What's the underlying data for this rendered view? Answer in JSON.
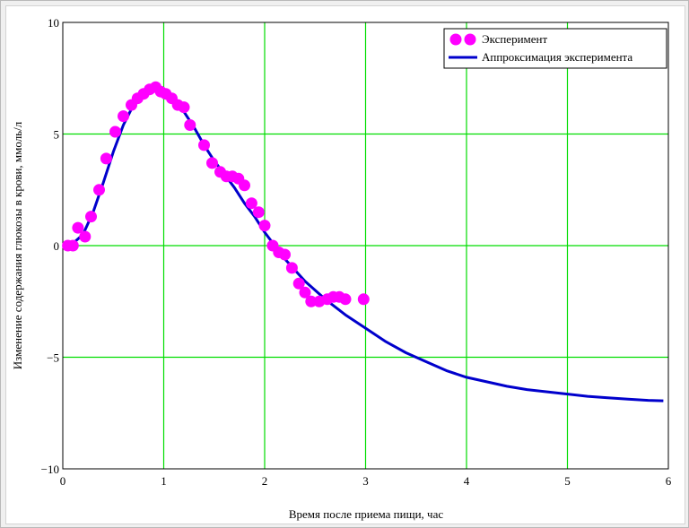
{
  "chart_data": {
    "type": "scatter",
    "xlabel": "Время после приема пищи, час",
    "ylabel": "Изменение содержания глюкозы в крови, ммоль/л",
    "xlim": [
      0,
      6
    ],
    "ylim": [
      -10,
      10
    ],
    "x_ticks": [
      "0",
      "1",
      "2",
      "3",
      "4",
      "5",
      "6"
    ],
    "y_ticks": [
      "10",
      "5",
      "0",
      "−5",
      "−10"
    ],
    "grid": true,
    "legend_position": "top-right",
    "colors": {
      "experiment": "#ff00ff",
      "fit": "#0000cc",
      "grid": "#00dd00"
    },
    "series": [
      {
        "name": "Эксперимент",
        "kind": "markers",
        "x": [
          0.05,
          0.1,
          0.15,
          0.22,
          0.28,
          0.36,
          0.43,
          0.52,
          0.6,
          0.68,
          0.74,
          0.8,
          0.86,
          0.92,
          0.97,
          1.02,
          1.08,
          1.14,
          1.2,
          1.26,
          1.4,
          1.48,
          1.56,
          1.62,
          1.68,
          1.74,
          1.8,
          1.87,
          1.94,
          2.0,
          2.08,
          2.14,
          2.2,
          2.27,
          2.34,
          2.4,
          2.46,
          2.54,
          2.62,
          2.68,
          2.74,
          2.8,
          2.98
        ],
        "y": [
          0.0,
          0.0,
          0.8,
          0.4,
          1.3,
          2.5,
          3.9,
          5.1,
          5.8,
          6.3,
          6.6,
          6.8,
          7.0,
          7.1,
          6.9,
          6.8,
          6.6,
          6.3,
          6.2,
          5.4,
          4.5,
          3.7,
          3.3,
          3.1,
          3.1,
          3.0,
          2.7,
          1.9,
          1.5,
          0.9,
          0.0,
          -0.3,
          -0.4,
          -1.0,
          -1.7,
          -2.1,
          -2.5,
          -2.5,
          -2.4,
          -2.3,
          -2.3,
          -2.4,
          -2.4
        ]
      },
      {
        "name": "Аппроксимация эксперимента",
        "kind": "line",
        "x": [
          0,
          0.1,
          0.2,
          0.3,
          0.4,
          0.5,
          0.6,
          0.7,
          0.8,
          0.9,
          0.95,
          1.0,
          1.1,
          1.2,
          1.3,
          1.4,
          1.5,
          1.6,
          1.7,
          1.8,
          1.9,
          2.0,
          2.2,
          2.4,
          2.6,
          2.8,
          3.0,
          3.2,
          3.4,
          3.6,
          3.8,
          4.0,
          4.2,
          4.4,
          4.6,
          4.8,
          5.0,
          5.2,
          5.4,
          5.6,
          5.8,
          5.95
        ],
        "y": [
          0.0,
          0.1,
          0.5,
          1.5,
          2.8,
          4.2,
          5.4,
          6.3,
          6.8,
          7.05,
          7.05,
          7.0,
          6.6,
          6.0,
          5.3,
          4.5,
          3.8,
          3.2,
          2.6,
          1.9,
          1.3,
          0.6,
          -0.6,
          -1.6,
          -2.4,
          -3.1,
          -3.7,
          -4.3,
          -4.8,
          -5.2,
          -5.6,
          -5.9,
          -6.1,
          -6.3,
          -6.45,
          -6.55,
          -6.65,
          -6.75,
          -6.82,
          -6.88,
          -6.93,
          -6.95
        ]
      }
    ]
  }
}
